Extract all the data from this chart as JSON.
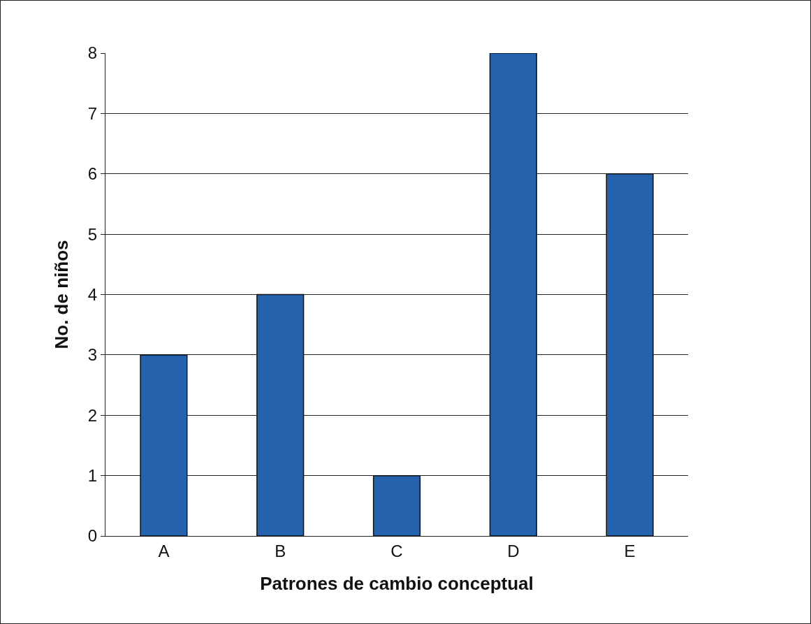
{
  "chart_data": {
    "type": "bar",
    "xlabel": "Patrones de cambio conceptual",
    "ylabel": "No. de niños",
    "categories": [
      "A",
      "B",
      "C",
      "D",
      "E"
    ],
    "values": [
      3,
      4,
      1,
      8,
      6
    ],
    "color": "#2462ad",
    "ylim": [
      0,
      8
    ],
    "yticks": [
      0,
      1,
      2,
      3,
      4,
      5,
      6,
      7,
      8
    ],
    "grid": "y"
  }
}
